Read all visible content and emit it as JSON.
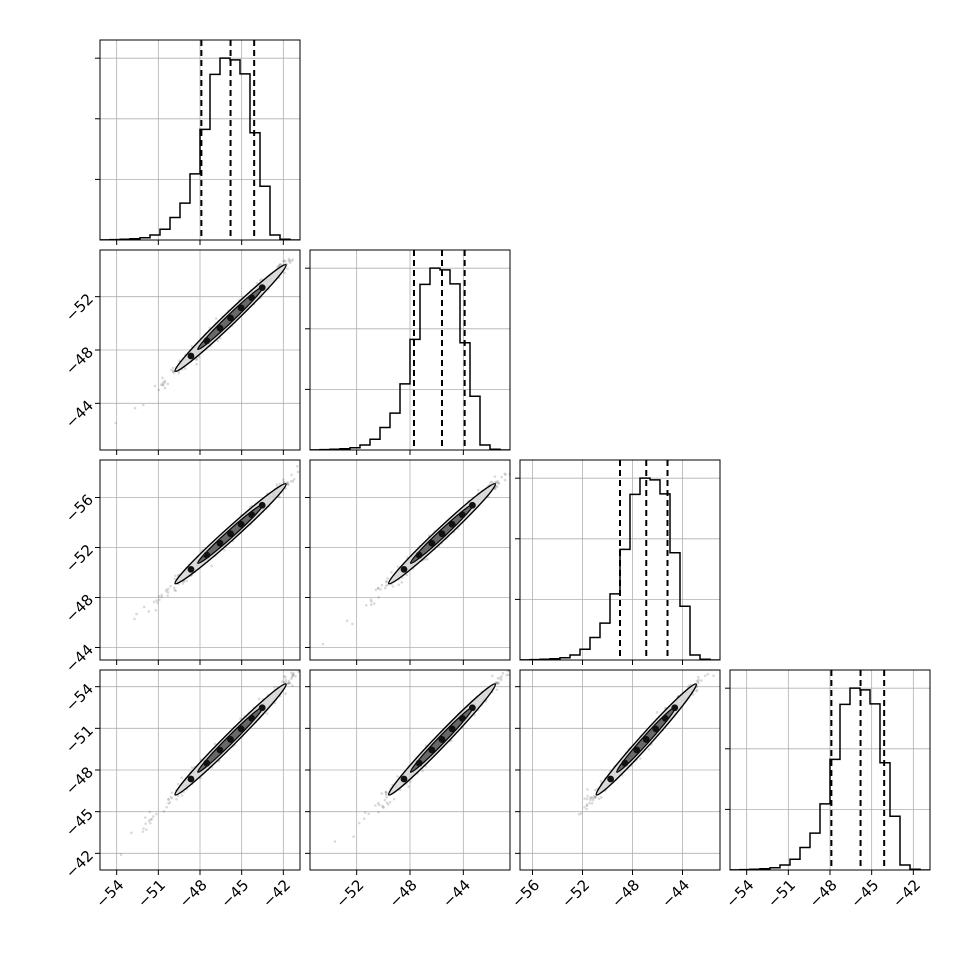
{
  "chart_data": {
    "type": "corner",
    "grid": true,
    "diagonal_quantile_lines": "dashed",
    "histogram_style": "step",
    "colors": {
      "line": "#000000",
      "grid": "#b0b0b0",
      "points": "#555555"
    },
    "correlation": 0.995,
    "tick_labels": {
      "col0": [
        "−54",
        "−51",
        "−48",
        "−45",
        "−42"
      ],
      "col1": [
        "−52",
        "−48",
        "−44"
      ],
      "col2": [
        "−56",
        "−52",
        "−48",
        "−44"
      ],
      "col3": [
        "−54",
        "−51",
        "−48",
        "−45",
        "−42"
      ],
      "row1": [
        "−44",
        "−48",
        "−52"
      ],
      "row2": [
        "−44",
        "−48",
        "−52",
        "−56"
      ],
      "row3": [
        "−42",
        "−45",
        "−48",
        "−51",
        "−54"
      ]
    },
    "parameters": [
      {
        "range": [
          -55.2,
          -40.8
        ],
        "ticks": [
          -54,
          -51,
          -48,
          -45,
          -42
        ],
        "quantiles": [
          -47.9,
          -45.8,
          -44.1
        ],
        "hist_counts": [
          1,
          2,
          4,
          7,
          12,
          27,
          58,
          122,
          200,
          358,
          599,
          897,
          985,
          976,
          900,
          581,
          291,
          27,
          4,
          0
        ]
      },
      {
        "range": [
          -55.5,
          -40.5
        ],
        "ticks": [
          -52,
          -48,
          -44
        ],
        "quantiles": [
          -47.7,
          -45.6,
          -43.9
        ],
        "hist_counts": [
          1,
          2,
          4,
          7,
          12,
          27,
          58,
          122,
          200,
          358,
          599,
          897,
          985,
          976,
          900,
          581,
          291,
          27,
          4,
          0
        ]
      },
      {
        "range": [
          -57.0,
          -41.0
        ],
        "ticks": [
          -56,
          -52,
          -48,
          -44
        ],
        "quantiles": [
          -49.0,
          -46.9,
          -45.2
        ],
        "hist_counts": [
          1,
          2,
          4,
          7,
          12,
          27,
          58,
          122,
          200,
          358,
          599,
          897,
          985,
          976,
          900,
          581,
          291,
          27,
          4,
          0
        ]
      },
      {
        "range": [
          -55.2,
          -40.8
        ],
        "ticks": [
          -54,
          -51,
          -48,
          -45,
          -42
        ],
        "quantiles": [
          -47.9,
          -45.8,
          -44.1
        ],
        "hist_counts": [
          1,
          2,
          4,
          7,
          12,
          27,
          58,
          122,
          200,
          358,
          599,
          897,
          985,
          976,
          900,
          581,
          291,
          27,
          4,
          0
        ]
      }
    ]
  }
}
